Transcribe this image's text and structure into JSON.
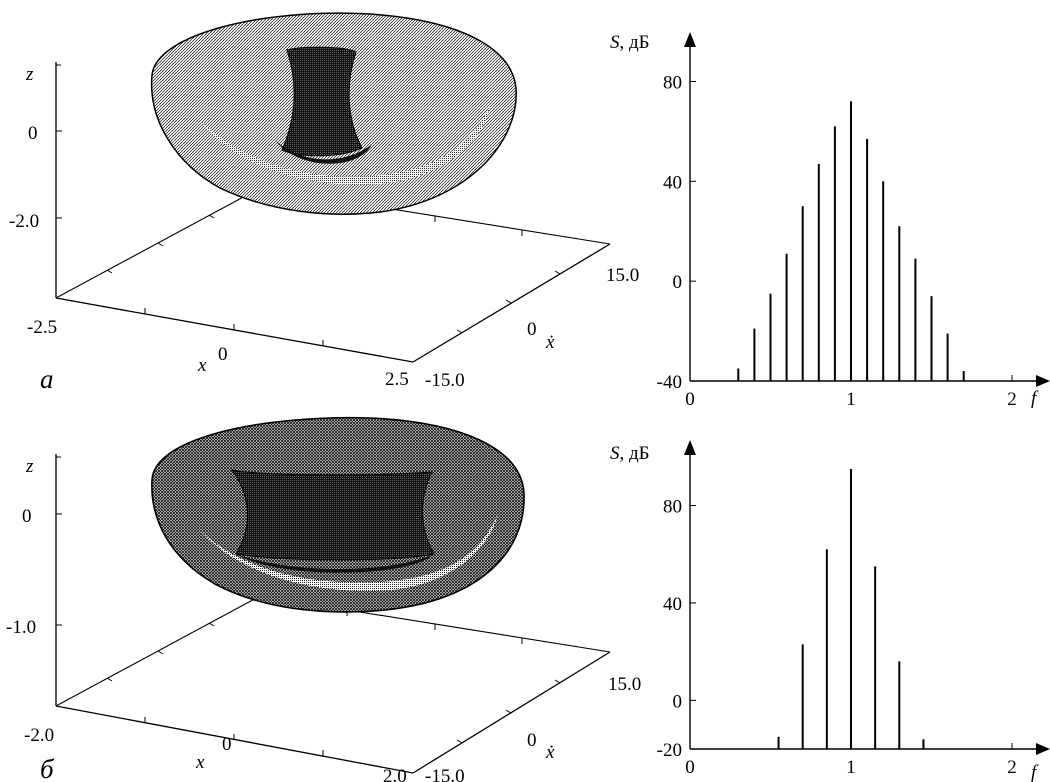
{
  "panels": [
    {
      "letter": "а",
      "view3d": {
        "axes": {
          "z_name": "z",
          "x_name": "x",
          "xdot_name": "ẋ"
        },
        "z_ticks": [
          "0",
          "-2.0"
        ],
        "x_ticks": [
          "-2.5",
          "0",
          "2.5"
        ],
        "xdot_ticks": [
          "15.0",
          "0",
          "-15.0"
        ]
      },
      "spectrum_axes": {
        "ylabel_sym": "S",
        "ylabel_unit": ", дБ",
        "xlabel": "f"
      }
    },
    {
      "letter": "б",
      "view3d": {
        "axes": {
          "z_name": "z",
          "x_name": "x",
          "xdot_name": "ẋ"
        },
        "z_ticks": [
          "0",
          "-1.0"
        ],
        "x_ticks": [
          "-2.0",
          "0",
          "2.0"
        ],
        "xdot_ticks": [
          "15.0",
          "0",
          "-15.0"
        ]
      },
      "spectrum_axes": {
        "ylabel_sym": "S",
        "ylabel_unit": ", дБ",
        "xlabel": "f"
      }
    }
  ],
  "chart_data": [
    {
      "type": "bar",
      "xlabel": "f",
      "ylabel": "S, дБ",
      "xlim": [
        0,
        2.1
      ],
      "ylim": [
        -40,
        95
      ],
      "xticks": [
        "0",
        "1",
        "2"
      ],
      "yticks": [
        "80",
        "40",
        "0",
        "-40"
      ],
      "series": [
        {
          "x": [
            0.3,
            0.4,
            0.5,
            0.6,
            0.7,
            0.8,
            0.9,
            1.0,
            1.1,
            1.2,
            1.3,
            1.4,
            1.5,
            1.6,
            1.7
          ],
          "values": [
            -35,
            -19,
            -5,
            11,
            30,
            47,
            62,
            72,
            57,
            40,
            22,
            9,
            -6,
            -21,
            -36
          ]
        }
      ]
    },
    {
      "type": "bar",
      "xlabel": "f",
      "ylabel": "S, дБ",
      "xlim": [
        0,
        2.1
      ],
      "ylim": [
        -20,
        102
      ],
      "xticks": [
        "0",
        "1",
        "2"
      ],
      "yticks": [
        "80",
        "40",
        "0",
        "-20"
      ],
      "series": [
        {
          "x": [
            0.55,
            0.7,
            0.85,
            1.0,
            1.15,
            1.3,
            1.45
          ],
          "values": [
            -15,
            23,
            62,
            95,
            55,
            16,
            -16
          ]
        }
      ]
    }
  ]
}
